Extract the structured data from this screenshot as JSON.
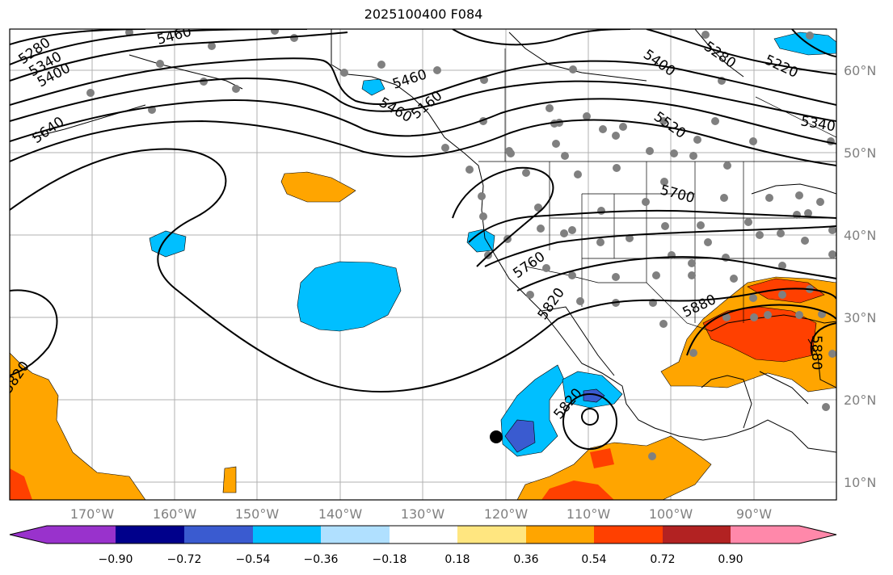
{
  "title": "2025100400 F084",
  "map": {
    "lat_labels": [
      "60°N",
      "50°N",
      "40°N",
      "30°N",
      "20°N",
      "10°N"
    ],
    "lon_labels": [
      "170°W",
      "160°W",
      "150°W",
      "140°W",
      "130°W",
      "120°W",
      "110°W",
      "100°W",
      "90°W"
    ],
    "contour_labels": [
      "5280",
      "5340",
      "5400",
      "5460",
      "5640",
      "5460",
      "5400",
      "5280",
      "5220",
      "5340",
      "5520",
      "5700",
      "5760",
      "5820",
      "5880",
      "5820",
      "5880",
      "5820",
      "5460",
      "5160"
    ]
  },
  "colorbar": {
    "ticks": [
      "−0.90",
      "−0.72",
      "−0.54",
      "−0.36",
      "−0.18",
      "0.18",
      "0.36",
      "0.54",
      "0.72",
      "0.90"
    ],
    "colors": [
      "#9932cc",
      "#00008b",
      "#3a5bd0",
      "#00bfff",
      "#b0e0ff",
      "#ffffff",
      "#ffe680",
      "#ffa500",
      "#ff4000",
      "#b22222",
      "#ff88aa"
    ]
  }
}
